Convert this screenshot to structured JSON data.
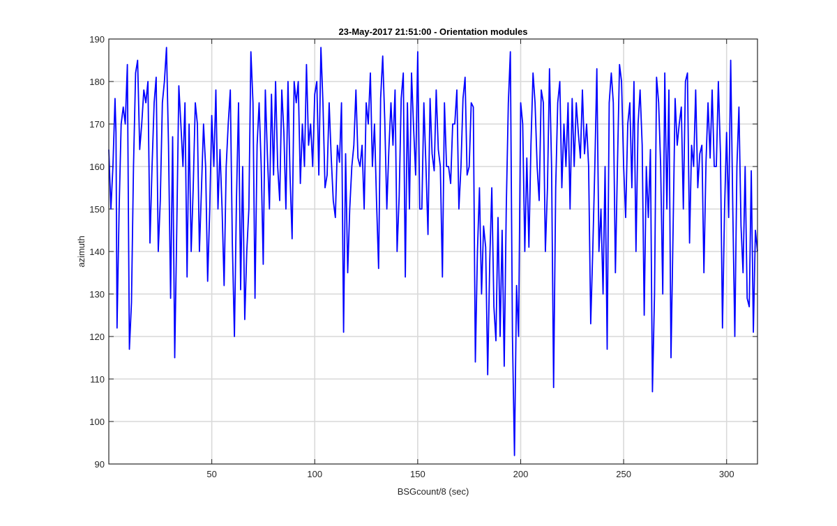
{
  "chart_data": {
    "type": "line",
    "title": "23-May-2017 21:51:00 - Orientation modules",
    "xlabel": "BSGcount/8 (sec)",
    "ylabel": "azimuth",
    "xlim": [
      0,
      315
    ],
    "ylim": [
      90,
      190
    ],
    "xticks": [
      50,
      100,
      150,
      200,
      250,
      300
    ],
    "yticks": [
      90,
      100,
      110,
      120,
      130,
      140,
      150,
      160,
      170,
      180,
      190
    ],
    "grid": true,
    "line_color": "#0000ff",
    "series": [
      {
        "name": "",
        "x": [
          0,
          1,
          2,
          3,
          3.5,
          4,
          5,
          6,
          7,
          8,
          9,
          10,
          11,
          12,
          13,
          14,
          15,
          16,
          17,
          18,
          19,
          20,
          21,
          22,
          23,
          24,
          25,
          26,
          27,
          28,
          29,
          30,
          31,
          32,
          33,
          34,
          35,
          36,
          37,
          38,
          39,
          40,
          41,
          42,
          43,
          44,
          45,
          46,
          47,
          48,
          49,
          50,
          51,
          52,
          53,
          54,
          55,
          56,
          57,
          58,
          59,
          60,
          61,
          62,
          63,
          64,
          65,
          66,
          67,
          68,
          69,
          70,
          71,
          72,
          73,
          74,
          75,
          76,
          77,
          78,
          79,
          80,
          81,
          82,
          83,
          84,
          85,
          86,
          87,
          88,
          89,
          90,
          91,
          92,
          93,
          94,
          95,
          96,
          97,
          98,
          99,
          100,
          101,
          102,
          103,
          104,
          105,
          106,
          107,
          108,
          109,
          110,
          111,
          112,
          113,
          114,
          115,
          116,
          117,
          118,
          119,
          120,
          121,
          122,
          123,
          124,
          125,
          126,
          127,
          128,
          129,
          130,
          131,
          132,
          133,
          134,
          135,
          136,
          137,
          138,
          139,
          140,
          141,
          142,
          143,
          144,
          145,
          146,
          147,
          148,
          149,
          150,
          151,
          152,
          153,
          154,
          155,
          156,
          157,
          158,
          159,
          160,
          161,
          162,
          163,
          164,
          165,
          166,
          167,
          168,
          169,
          170,
          171,
          172,
          173,
          174,
          175,
          176,
          177,
          178,
          179,
          180,
          181,
          182,
          183,
          184,
          185,
          186,
          187,
          188,
          189,
          190,
          191,
          192,
          193,
          194,
          195,
          196,
          197,
          198,
          199,
          200,
          201,
          202,
          203,
          204,
          205,
          206,
          207,
          208,
          209,
          210,
          211,
          212,
          213,
          214,
          215,
          216,
          217,
          218,
          219,
          220,
          221,
          222,
          223,
          224,
          225,
          226,
          227,
          228,
          229,
          230,
          231,
          232,
          233,
          234,
          235,
          236,
          237,
          238,
          239,
          240,
          241,
          242,
          243,
          244,
          245,
          246,
          247,
          248,
          249,
          250,
          251,
          252,
          253,
          254,
          255,
          256,
          257,
          258,
          259,
          260,
          261,
          262,
          263,
          264,
          265,
          266,
          267,
          268,
          269,
          270,
          271,
          272,
          273,
          274,
          275,
          276,
          277,
          278,
          279,
          280,
          281,
          282,
          283,
          284,
          285,
          286,
          287,
          288,
          289,
          290,
          291,
          292,
          293,
          294,
          295,
          296,
          297,
          298,
          299,
          300,
          301,
          302,
          303,
          304,
          305,
          306,
          307,
          308,
          309,
          310,
          311,
          312,
          313,
          314,
          315
        ],
        "y": [
          164,
          150,
          160,
          176,
          168,
          122,
          150,
          170,
          174,
          170,
          184,
          117,
          128,
          160,
          182,
          185,
          164,
          170,
          178,
          175,
          180,
          142,
          160,
          175,
          181,
          140,
          152,
          175,
          180,
          188,
          165,
          129,
          167,
          115,
          145,
          179,
          170,
          160,
          175,
          134,
          170,
          140,
          155,
          175,
          170,
          140,
          155,
          170,
          160,
          133,
          150,
          172,
          160,
          178,
          150,
          164,
          150,
          132,
          160,
          170,
          178,
          142,
          120,
          152,
          175,
          131,
          160,
          124,
          140,
          150,
          187,
          175,
          129,
          165,
          175,
          160,
          137,
          178,
          163,
          150,
          177,
          158,
          180,
          160,
          152,
          178,
          168,
          150,
          180,
          158,
          143,
          180,
          175,
          180,
          156,
          170,
          160,
          184,
          165,
          170,
          160,
          177,
          180,
          158,
          188,
          175,
          155,
          158,
          175,
          162,
          152,
          148,
          165,
          161,
          175,
          121,
          163,
          135,
          150,
          160,
          165,
          178,
          162,
          160,
          165,
          150,
          175,
          170,
          182,
          160,
          170,
          152,
          136,
          176,
          186,
          171,
          150,
          164,
          175,
          165,
          178,
          140,
          153,
          176,
          182,
          134,
          175,
          150,
          182,
          169,
          158,
          187,
          150,
          150,
          175,
          160,
          144,
          176,
          163,
          159,
          178,
          164,
          160,
          134,
          175,
          160,
          160,
          156,
          170,
          170,
          178,
          150,
          160,
          176,
          181,
          158,
          160,
          175,
          174,
          114,
          140,
          155,
          130,
          146,
          141,
          111,
          138,
          155,
          127,
          119,
          148,
          120,
          145,
          113,
          150,
          175,
          187,
          120,
          92,
          132,
          120,
          175,
          170,
          140,
          162,
          141,
          165,
          182,
          175,
          160,
          152,
          178,
          175,
          140,
          155,
          183,
          160,
          108,
          155,
          175,
          180,
          155,
          170,
          160,
          175,
          150,
          176,
          160,
          175,
          168,
          162,
          178,
          163,
          170,
          160,
          123,
          140,
          160,
          183,
          140,
          150,
          130,
          160,
          117,
          175,
          182,
          175,
          135,
          160,
          184,
          180,
          160,
          148,
          170,
          175,
          155,
          180,
          140,
          170,
          178,
          165,
          125,
          160,
          148,
          164,
          107,
          130,
          181,
          175,
          160,
          130,
          182,
          150,
          178,
          115,
          145,
          176,
          165,
          170,
          174,
          150,
          180,
          182,
          142,
          165,
          160,
          178,
          155,
          163,
          165,
          135,
          161,
          175,
          162,
          178,
          160,
          160,
          180,
          163,
          122,
          150,
          168,
          148,
          185,
          150,
          120,
          160,
          174,
          146,
          135,
          160,
          129,
          127,
          159,
          121,
          145,
          140
        ]
      }
    ]
  }
}
